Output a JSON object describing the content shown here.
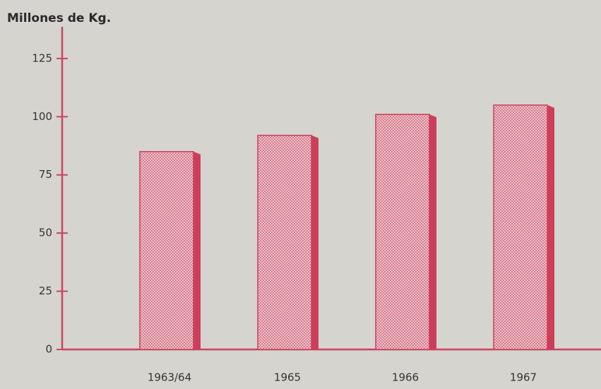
{
  "chart_data": {
    "type": "bar",
    "y_label": "Millones de Kg.",
    "categories": [
      "1963/64",
      "1965",
      "1966",
      "1967"
    ],
    "values": [
      85,
      92,
      101,
      105
    ],
    "color": "#cc3f5a",
    "ylim": [
      0,
      138
    ],
    "yticks": [
      0,
      25,
      50,
      75,
      100,
      125
    ],
    "grid": false
  }
}
